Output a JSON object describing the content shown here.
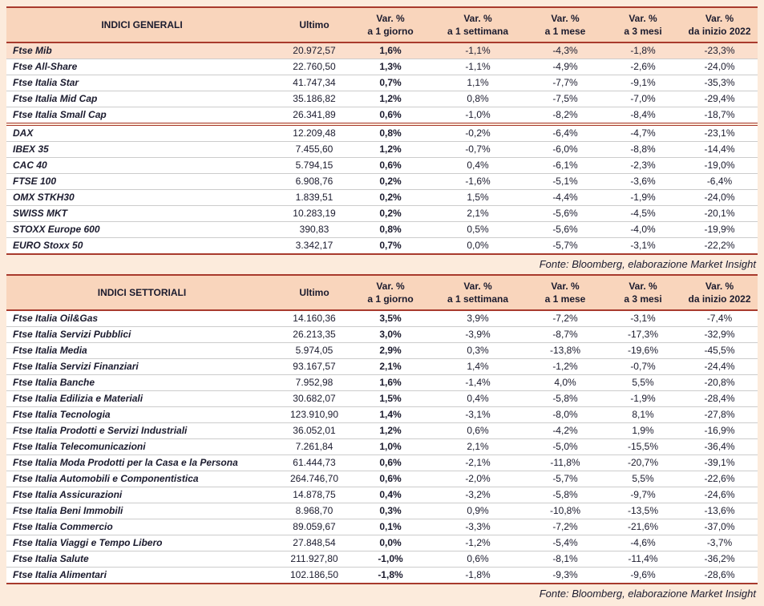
{
  "colors": {
    "accent": "#a83a2d",
    "page_bg": "#fcebdc",
    "header_bg": "#f9d5bc",
    "highlight_bg": "#fbdfcd",
    "row_line": "#cccccc",
    "ink": "#1b1b2e"
  },
  "columns": {
    "ultimo_label": "Ultimo",
    "var_labels": [
      [
        "Var. %",
        "a 1 giorno"
      ],
      [
        "Var. %",
        "a 1 settimana"
      ],
      [
        "Var. %",
        "a 1 mese"
      ],
      [
        "Var. %",
        "a 3 mesi"
      ],
      [
        "Var. %",
        "da inizio 2022"
      ]
    ]
  },
  "tables": [
    {
      "title": "INDICI GENERALI",
      "source_note": "Fonte: Bloomberg, elaborazione Market Insight",
      "groups": [
        [
          {
            "name": "Ftse Mib",
            "ultimo": "20.972,57",
            "vars": [
              "1,6%",
              "-1,1%",
              "-4,3%",
              "-1,8%",
              "-23,3%"
            ],
            "highlight": true
          },
          {
            "name": "Ftse All-Share",
            "ultimo": "22.760,50",
            "vars": [
              "1,3%",
              "-1,1%",
              "-4,9%",
              "-2,6%",
              "-24,0%"
            ]
          },
          {
            "name": "Ftse Italia Star",
            "ultimo": "41.747,34",
            "vars": [
              "0,7%",
              "1,1%",
              "-7,7%",
              "-9,1%",
              "-35,3%"
            ]
          },
          {
            "name": "Ftse Italia Mid Cap",
            "ultimo": "35.186,82",
            "vars": [
              "1,2%",
              "0,8%",
              "-7,5%",
              "-7,0%",
              "-29,4%"
            ]
          },
          {
            "name": "Ftse Italia Small Cap",
            "ultimo": "26.341,89",
            "vars": [
              "0,6%",
              "-1,0%",
              "-8,2%",
              "-8,4%",
              "-18,7%"
            ]
          }
        ],
        [
          {
            "name": "DAX",
            "ultimo": "12.209,48",
            "vars": [
              "0,8%",
              "-0,2%",
              "-6,4%",
              "-4,7%",
              "-23,1%"
            ]
          },
          {
            "name": "IBEX 35",
            "ultimo": "7.455,60",
            "vars": [
              "1,2%",
              "-0,7%",
              "-6,0%",
              "-8,8%",
              "-14,4%"
            ]
          },
          {
            "name": "CAC 40",
            "ultimo": "5.794,15",
            "vars": [
              "0,6%",
              "0,4%",
              "-6,1%",
              "-2,3%",
              "-19,0%"
            ]
          },
          {
            "name": "FTSE 100",
            "ultimo": "6.908,76",
            "vars": [
              "0,2%",
              "-1,6%",
              "-5,1%",
              "-3,6%",
              "-6,4%"
            ]
          },
          {
            "name": "OMX STKH30",
            "ultimo": "1.839,51",
            "vars": [
              "0,2%",
              "1,5%",
              "-4,4%",
              "-1,9%",
              "-24,0%"
            ]
          },
          {
            "name": "SWISS MKT",
            "ultimo": "10.283,19",
            "vars": [
              "0,2%",
              "2,1%",
              "-5,6%",
              "-4,5%",
              "-20,1%"
            ]
          },
          {
            "name": "STOXX Europe 600",
            "ultimo": "390,83",
            "vars": [
              "0,8%",
              "0,5%",
              "-5,6%",
              "-4,0%",
              "-19,9%"
            ]
          },
          {
            "name": "EURO Stoxx 50",
            "ultimo": "3.342,17",
            "vars": [
              "0,7%",
              "0,0%",
              "-5,7%",
              "-3,1%",
              "-22,2%"
            ]
          }
        ]
      ]
    },
    {
      "title": "INDICI SETTORIALI",
      "source_note": "Fonte: Bloomberg, elaborazione Market Insight",
      "groups": [
        [
          {
            "name": "Ftse Italia Oil&Gas",
            "ultimo": "14.160,36",
            "vars": [
              "3,5%",
              "3,9%",
              "-7,2%",
              "-3,1%",
              "-7,4%"
            ]
          },
          {
            "name": "Ftse Italia Servizi Pubblici",
            "ultimo": "26.213,35",
            "vars": [
              "3,0%",
              "-3,9%",
              "-8,7%",
              "-17,3%",
              "-32,9%"
            ]
          },
          {
            "name": "Ftse Italia Media",
            "ultimo": "5.974,05",
            "vars": [
              "2,9%",
              "0,3%",
              "-13,8%",
              "-19,6%",
              "-45,5%"
            ]
          },
          {
            "name": "Ftse Italia Servizi Finanziari",
            "ultimo": "93.167,57",
            "vars": [
              "2,1%",
              "1,4%",
              "-1,2%",
              "-0,7%",
              "-24,4%"
            ]
          },
          {
            "name": "Ftse Italia Banche",
            "ultimo": "7.952,98",
            "vars": [
              "1,6%",
              "-1,4%",
              "4,0%",
              "5,5%",
              "-20,8%"
            ]
          },
          {
            "name": "Ftse Italia Edilizia e Materiali",
            "ultimo": "30.682,07",
            "vars": [
              "1,5%",
              "0,4%",
              "-5,8%",
              "-1,9%",
              "-28,4%"
            ]
          },
          {
            "name": "Ftse Italia Tecnologia",
            "ultimo": "123.910,90",
            "vars": [
              "1,4%",
              "-3,1%",
              "-8,0%",
              "8,1%",
              "-27,8%"
            ]
          },
          {
            "name": "Ftse Italia Prodotti e Servizi Industriali",
            "ultimo": "36.052,01",
            "vars": [
              "1,2%",
              "0,6%",
              "-4,2%",
              "1,9%",
              "-16,9%"
            ]
          },
          {
            "name": "Ftse Italia Telecomunicazioni",
            "ultimo": "7.261,84",
            "vars": [
              "1,0%",
              "2,1%",
              "-5,0%",
              "-15,5%",
              "-36,4%"
            ]
          },
          {
            "name": "Ftse Italia Moda Prodotti per la Casa e la Persona",
            "ultimo": "61.444,73",
            "vars": [
              "0,6%",
              "-2,1%",
              "-11,8%",
              "-20,7%",
              "-39,1%"
            ]
          },
          {
            "name": "Ftse Italia Automobili e Componentistica",
            "ultimo": "264.746,70",
            "vars": [
              "0,6%",
              "-2,0%",
              "-5,7%",
              "5,5%",
              "-22,6%"
            ]
          },
          {
            "name": "Ftse Italia Assicurazioni",
            "ultimo": "14.878,75",
            "vars": [
              "0,4%",
              "-3,2%",
              "-5,8%",
              "-9,7%",
              "-24,6%"
            ]
          },
          {
            "name": "Ftse Italia Beni Immobili",
            "ultimo": "8.968,70",
            "vars": [
              "0,3%",
              "0,9%",
              "-10,8%",
              "-13,5%",
              "-13,6%"
            ]
          },
          {
            "name": "Ftse Italia Commercio",
            "ultimo": "89.059,67",
            "vars": [
              "0,1%",
              "-3,3%",
              "-7,2%",
              "-21,6%",
              "-37,0%"
            ]
          },
          {
            "name": "Ftse Italia Viaggi e Tempo Libero",
            "ultimo": "27.848,54",
            "vars": [
              "0,0%",
              "-1,2%",
              "-5,4%",
              "-4,6%",
              "-3,7%"
            ]
          },
          {
            "name": "Ftse Italia Salute",
            "ultimo": "211.927,80",
            "vars": [
              "-1,0%",
              "0,6%",
              "-8,1%",
              "-11,4%",
              "-36,2%"
            ]
          },
          {
            "name": "Ftse Italia Alimentari",
            "ultimo": "102.186,50",
            "vars": [
              "-1,8%",
              "-1,8%",
              "-9,3%",
              "-9,6%",
              "-28,6%"
            ]
          }
        ]
      ]
    }
  ]
}
